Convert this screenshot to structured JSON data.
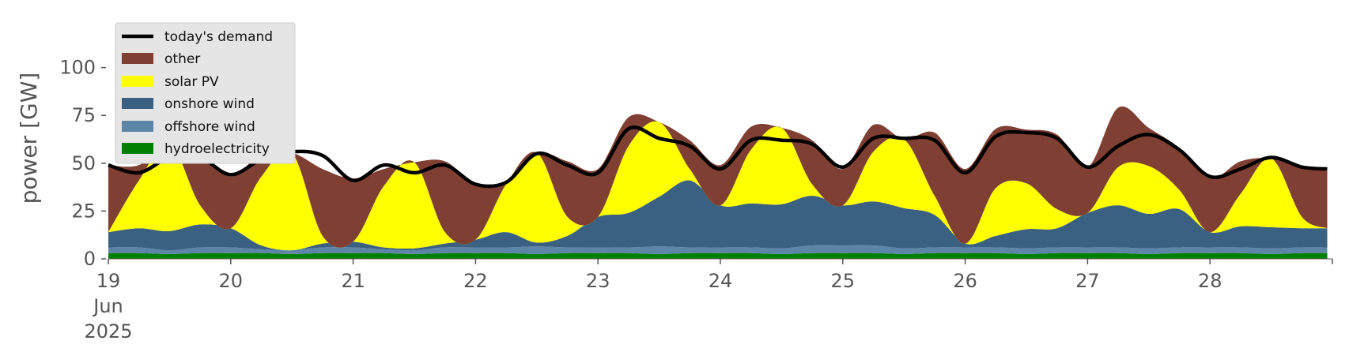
{
  "chart_data": {
    "type": "area",
    "ylabel": "power [GW]",
    "ylim": [
      0,
      118
    ],
    "yticks": [
      0,
      25,
      50,
      75,
      100
    ],
    "xlim": [
      "2025-06-19",
      "2025-06-29"
    ],
    "xtick_labels": [
      {
        "day": "19",
        "month": "Jun",
        "year": "2025"
      },
      {
        "day": "20"
      },
      {
        "day": "21"
      },
      {
        "day": "22"
      },
      {
        "day": "23"
      },
      {
        "day": "24"
      },
      {
        "day": "25"
      },
      {
        "day": "26"
      },
      {
        "day": "27"
      },
      {
        "day": "28"
      }
    ],
    "grid": false,
    "legend_position": "upper left",
    "legend": [
      "today's demand",
      "other",
      "solar PV",
      "onshore wind",
      "offshore wind",
      "hydroelectricity"
    ],
    "colors": {
      "today's demand": "#000000",
      "other": "#7f3f32",
      "solar PV": "#ffff00",
      "onshore wind": "#3b6182",
      "offshore wind": "#5d85a7",
      "hydroelectricity": "#008000"
    },
    "x": [
      "2025-06-19 00:00",
      "2025-06-19 06:00",
      "2025-06-19 12:00",
      "2025-06-19 18:00",
      "2025-06-20 00:00",
      "2025-06-20 06:00",
      "2025-06-20 12:00",
      "2025-06-20 18:00",
      "2025-06-21 00:00",
      "2025-06-21 06:00",
      "2025-06-21 12:00",
      "2025-06-21 18:00",
      "2025-06-22 00:00",
      "2025-06-22 06:00",
      "2025-06-22 12:00",
      "2025-06-22 18:00",
      "2025-06-23 00:00",
      "2025-06-23 06:00",
      "2025-06-23 12:00",
      "2025-06-23 18:00",
      "2025-06-24 00:00",
      "2025-06-24 06:00",
      "2025-06-24 12:00",
      "2025-06-24 18:00",
      "2025-06-25 00:00",
      "2025-06-25 06:00",
      "2025-06-25 12:00",
      "2025-06-25 18:00",
      "2025-06-26 00:00",
      "2025-06-26 06:00",
      "2025-06-26 12:00",
      "2025-06-26 18:00",
      "2025-06-27 00:00",
      "2025-06-27 06:00",
      "2025-06-27 12:00",
      "2025-06-27 18:00",
      "2025-06-28 00:00",
      "2025-06-28 06:00",
      "2025-06-28 12:00",
      "2025-06-28 18:00",
      "2025-06-28 23:00"
    ],
    "series": [
      {
        "name": "hydroelectricity",
        "values": [
          3,
          3,
          2.5,
          3,
          3,
          3,
          2.5,
          3,
          3,
          3,
          2.5,
          3,
          3,
          3,
          2.5,
          3,
          3,
          3,
          2.5,
          3,
          3,
          3,
          2.5,
          3,
          3,
          3,
          2.5,
          3,
          3,
          3,
          2.5,
          3,
          3,
          3,
          2.5,
          3,
          3,
          3,
          2.5,
          3,
          3
        ]
      },
      {
        "name": "offshore wind",
        "values": [
          3,
          3,
          2,
          3,
          3,
          2,
          2,
          3,
          3,
          2,
          2,
          3,
          3,
          3,
          4,
          3,
          3,
          3,
          4,
          3,
          3,
          3,
          3,
          4,
          4,
          4,
          3,
          3,
          3,
          3,
          3,
          3,
          3,
          3,
          3,
          3,
          3,
          3,
          3,
          3,
          3
        ]
      },
      {
        "name": "onshore wind",
        "values": [
          8,
          10,
          10,
          12,
          10,
          2,
          0,
          2,
          3,
          1,
          1,
          2,
          4,
          8,
          2,
          6,
          16,
          18,
          26,
          35,
          22,
          23,
          23,
          26,
          21,
          23,
          21,
          17,
          2,
          6,
          10,
          10,
          18,
          22,
          18,
          20,
          8,
          11,
          11,
          10,
          10
        ]
      },
      {
        "name": "solar PV",
        "values": [
          0,
          25,
          46,
          10,
          0,
          36,
          51,
          4,
          0,
          32,
          45,
          6,
          0,
          25,
          47,
          10,
          0,
          35,
          39,
          6,
          0,
          28,
          40,
          6,
          0,
          26,
          36,
          10,
          0,
          25,
          24,
          10,
          0,
          20,
          25,
          10,
          0,
          17,
          36,
          6,
          0
        ]
      },
      {
        "name": "other",
        "values": [
          35,
          8,
          0,
          28,
          27,
          12,
          0,
          35,
          33,
          9,
          0,
          37,
          29,
          2,
          0,
          29,
          25,
          15,
          0,
          15,
          21,
          12,
          0,
          23,
          19,
          14,
          0,
          33,
          39,
          31,
          28,
          39,
          24,
          31,
          20,
          22,
          28,
          17,
          0,
          26,
          30
        ]
      },
      {
        "name": "today's demand",
        "values": [
          49,
          45,
          53,
          53,
          44,
          52,
          56,
          54,
          41,
          49,
          45,
          49,
          39,
          40,
          55,
          49,
          45,
          68,
          63,
          59,
          47,
          62,
          62,
          60,
          48,
          63,
          63,
          62,
          45,
          64,
          66,
          63,
          48,
          59,
          65,
          57,
          43,
          47,
          53,
          48,
          47
        ]
      }
    ]
  }
}
